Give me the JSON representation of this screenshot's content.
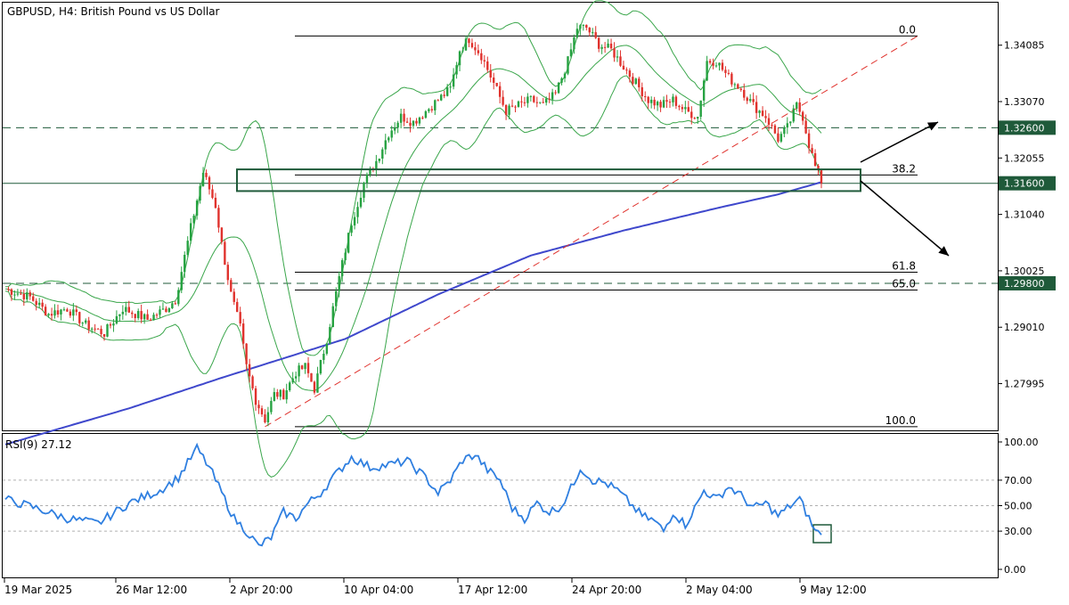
{
  "header": {
    "title": "GBPUSD, H4:  British Pound vs US Dollar"
  },
  "colors": {
    "bull": "#26a241",
    "bear": "#e0322d",
    "ma": "#3f48cc",
    "bollinger": "#3aa64b",
    "rsi": "#2f7fe0",
    "trend": "#e0322d",
    "fib": "#000000",
    "box": "#1f5a3a",
    "label_bg": "#1f5a3a",
    "grid_dash": "#1f5a3a"
  },
  "chart_data": [
    {
      "type": "candlestick",
      "symbol": "GBPUSD",
      "timeframe": "H4",
      "title": "GBPUSD, H4:  British Pound vs US Dollar",
      "ylim": [
        1.2717,
        1.3485
      ],
      "y_ticks": [
        "1.34085",
        "1.33070",
        "1.32055",
        "1.31040",
        "1.30025",
        "1.29010",
        "1.27995"
      ],
      "x_ticks": [
        "19 Mar 2025",
        "26 Mar 12:00",
        "2 Apr 20:00",
        "10 Apr 04:00",
        "17 Apr 12:00",
        "24 Apr 20:00",
        "2 May 04:00",
        "9 May 12:00"
      ],
      "key_points": [
        {
          "date": "19 Mar 2025",
          "close": 1.297
        },
        {
          "date": "26 Mar 12:00",
          "close": 1.289
        },
        {
          "date": "2 Apr 20:00",
          "close": 1.319
        },
        {
          "date": "7 Apr",
          "close": 1.273
        },
        {
          "date": "10 Apr 04:00",
          "close": 1.288
        },
        {
          "date": "17 Apr 12:00",
          "close": 1.33
        },
        {
          "date": "22 Apr",
          "close": 1.343
        },
        {
          "date": "24 Apr 20:00",
          "close": 1.333
        },
        {
          "date": "2 May 04:00",
          "close": 1.33
        },
        {
          "date": "9 May 12:00",
          "close": 1.316
        }
      ],
      "horizontal_levels": [
        {
          "price": 1.326,
          "label": "1.32600",
          "style": "dashed"
        },
        {
          "price": 1.316,
          "label": "1.31600",
          "style": "solid"
        },
        {
          "price": 1.298,
          "label": "1.29800",
          "style": "dashed"
        }
      ],
      "fibonacci": [
        {
          "level": "0.0",
          "price": 1.3425
        },
        {
          "level": "38.2",
          "price": 1.3175
        },
        {
          "level": "61.8",
          "price": 1.3
        },
        {
          "level": "65.0",
          "price": 1.2968
        },
        {
          "level": "100.0",
          "price": 1.2722
        }
      ],
      "indicators": [
        "Bollinger Bands",
        "Moving Average"
      ]
    },
    {
      "type": "line",
      "title": "RSI(9) 27.12",
      "ylim": [
        0,
        100
      ],
      "y_ticks": [
        "100.00",
        "70.00",
        "50.00",
        "30.00",
        "0.00"
      ],
      "levels": [
        70,
        50,
        30
      ],
      "last_value": 27.12
    }
  ]
}
